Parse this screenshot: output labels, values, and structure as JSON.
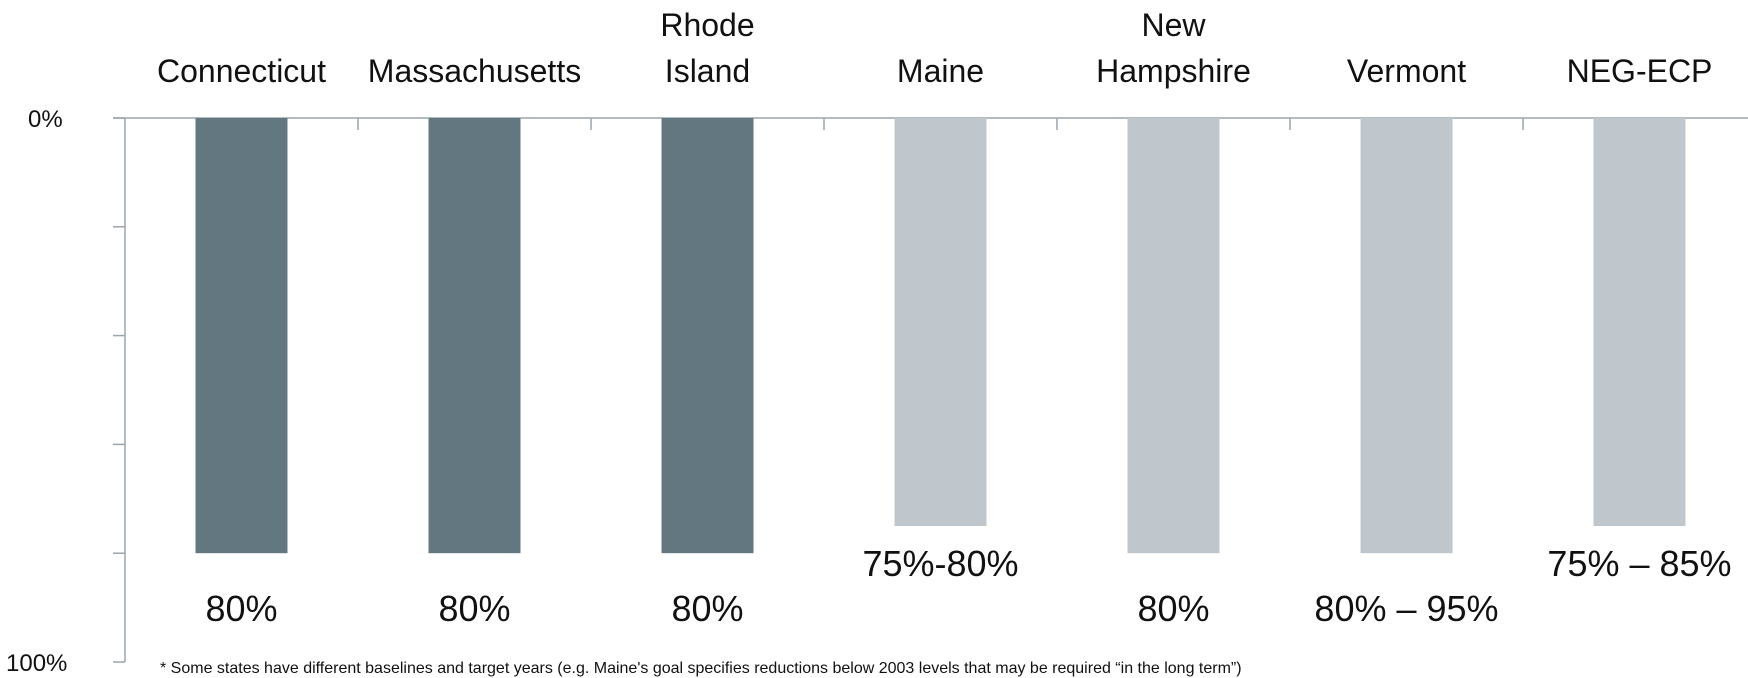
{
  "chart_data": {
    "type": "bar",
    "orientation": "inverted-y",
    "categories": [
      "Connecticut",
      "Massachusetts",
      "Rhode Island",
      "Maine",
      "New Hampshire",
      "Vermont",
      "NEG-ECP"
    ],
    "category_lines": [
      [
        "Connecticut"
      ],
      [
        "Massachusetts"
      ],
      [
        "Rhode",
        "Island"
      ],
      [
        "Maine"
      ],
      [
        "New",
        "Hampshire"
      ],
      [
        "Vermont"
      ],
      [
        "NEG-ECP"
      ]
    ],
    "values": [
      80,
      80,
      80,
      75,
      80,
      80,
      75
    ],
    "data_labels": [
      "80%",
      "80%",
      "80%",
      "75%-80%",
      "80%",
      "80% – 95%",
      "75% – 85%"
    ],
    "bar_colors": [
      "#637780",
      "#637780",
      "#637780",
      "#bfc7cd",
      "#bfc7cd",
      "#bfc7cd",
      "#bfc7cd"
    ],
    "y_tick_labels": [
      "0%",
      "100%"
    ],
    "ylim": [
      0,
      100
    ],
    "title": "",
    "xlabel": "",
    "ylabel": "",
    "grid": false,
    "legend": "none"
  },
  "footnote": "* Some states have different baselines and target years (e.g. Maine's goal specifies reductions below 2003 levels that may be required “in the long term”)"
}
